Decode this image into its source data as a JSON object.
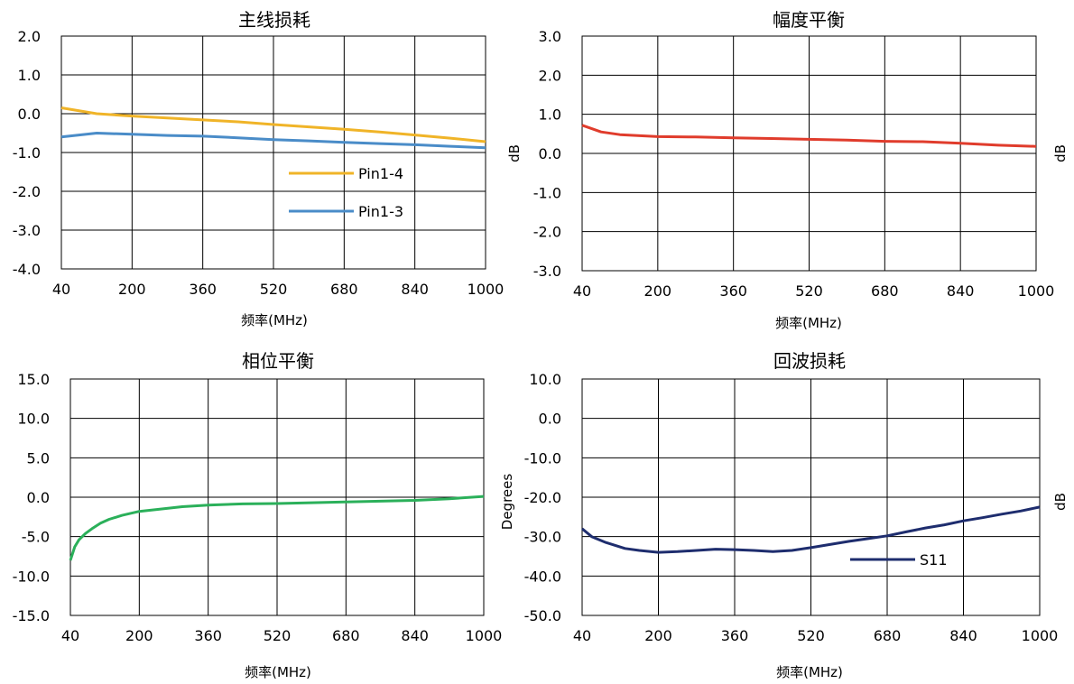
{
  "chart_data": [
    {
      "id": "main-loss",
      "type": "line",
      "title": "主线损耗",
      "xlabel": "频率(MHz)",
      "ylabel": "",
      "x_ticks": [
        "40",
        "200",
        "360",
        "520",
        "680",
        "840",
        "1000"
      ],
      "y_ticks": [
        "2.0",
        "1.0",
        "0.0",
        "-1.0",
        "-2.0",
        "-3.0",
        "-4.0"
      ],
      "xlim": [
        40,
        1000
      ],
      "ylim": [
        -4,
        2
      ],
      "grid": true,
      "legend_position": "center-right",
      "x": [
        40,
        120,
        200,
        280,
        360,
        440,
        520,
        600,
        680,
        760,
        840,
        920,
        1000
      ],
      "series": [
        {
          "name": "Pin1-4",
          "color": "#F0B428",
          "values": [
            0.15,
            0.0,
            -0.06,
            -0.11,
            -0.16,
            -0.21,
            -0.28,
            -0.34,
            -0.4,
            -0.47,
            -0.55,
            -0.63,
            -0.72
          ]
        },
        {
          "name": "Pin1-3",
          "color": "#4A8CC8",
          "values": [
            -0.6,
            -0.5,
            -0.53,
            -0.56,
            -0.58,
            -0.62,
            -0.67,
            -0.7,
            -0.74,
            -0.77,
            -0.8,
            -0.84,
            -0.88
          ]
        }
      ]
    },
    {
      "id": "amplitude-balance",
      "type": "line",
      "title": "幅度平衡",
      "xlabel": "频率(MHz)",
      "ylabel": "dB",
      "x_ticks": [
        "40",
        "200",
        "360",
        "520",
        "680",
        "840",
        "1000"
      ],
      "y_ticks": [
        "3.0",
        "2.0",
        "1.0",
        "0.0",
        "-1.0",
        "-2.0",
        "-3.0"
      ],
      "xlim": [
        40,
        1000
      ],
      "ylim": [
        -3,
        3
      ],
      "grid": true,
      "x": [
        40,
        80,
        120,
        200,
        280,
        360,
        440,
        520,
        600,
        680,
        760,
        840,
        920,
        1000
      ],
      "series": [
        {
          "name": "",
          "color": "#E03C2C",
          "values": [
            0.72,
            0.55,
            0.48,
            0.43,
            0.42,
            0.4,
            0.38,
            0.36,
            0.34,
            0.31,
            0.3,
            0.26,
            0.21,
            0.18
          ]
        }
      ]
    },
    {
      "id": "phase-balance",
      "type": "line",
      "title": "相位平衡",
      "xlabel": "频率(MHz)",
      "ylabel": "Degrees",
      "x_ticks": [
        "40",
        "200",
        "360",
        "520",
        "680",
        "840",
        "1000"
      ],
      "y_ticks": [
        "15.0",
        "10.0",
        "5.0",
        "0.0",
        "-5.0",
        "-10.0",
        "-15.0"
      ],
      "xlim": [
        40,
        1000
      ],
      "ylim": [
        -15,
        15
      ],
      "grid": true,
      "x": [
        40,
        50,
        60,
        75,
        90,
        110,
        130,
        160,
        200,
        250,
        300,
        360,
        440,
        520,
        600,
        680,
        760,
        840,
        920,
        1000
      ],
      "series": [
        {
          "name": "",
          "color": "#2BB05A",
          "values": [
            -8.0,
            -6.3,
            -5.4,
            -4.6,
            -4.0,
            -3.3,
            -2.8,
            -2.3,
            -1.8,
            -1.5,
            -1.2,
            -1.0,
            -0.85,
            -0.8,
            -0.7,
            -0.6,
            -0.5,
            -0.4,
            -0.2,
            0.1
          ]
        }
      ]
    },
    {
      "id": "return-loss",
      "type": "line",
      "title": "回波损耗",
      "xlabel": "频率(MHz)",
      "ylabel": "dB",
      "x_ticks": [
        "40",
        "200",
        "360",
        "520",
        "680",
        "840",
        "1000"
      ],
      "y_ticks": [
        "10.0",
        "0.0",
        "-10.0",
        "-20.0",
        "-30.0",
        "-40.0",
        "-50.0"
      ],
      "xlim": [
        40,
        1000
      ],
      "ylim": [
        -50,
        10
      ],
      "grid": true,
      "legend_position": "center-right",
      "x": [
        40,
        60,
        90,
        130,
        160,
        200,
        240,
        280,
        320,
        360,
        400,
        440,
        480,
        520,
        560,
        600,
        640,
        680,
        720,
        760,
        800,
        840,
        880,
        920,
        960,
        1000
      ],
      "series": [
        {
          "name": "S11",
          "color": "#1E2D6E",
          "values": [
            -28.0,
            -30.0,
            -31.5,
            -33.0,
            -33.5,
            -34.0,
            -33.8,
            -33.5,
            -33.2,
            -33.3,
            -33.5,
            -33.8,
            -33.5,
            -32.8,
            -32.0,
            -31.2,
            -30.5,
            -29.8,
            -28.8,
            -27.8,
            -27.0,
            -26.0,
            -25.2,
            -24.3,
            -23.5,
            -22.5
          ]
        }
      ]
    }
  ]
}
